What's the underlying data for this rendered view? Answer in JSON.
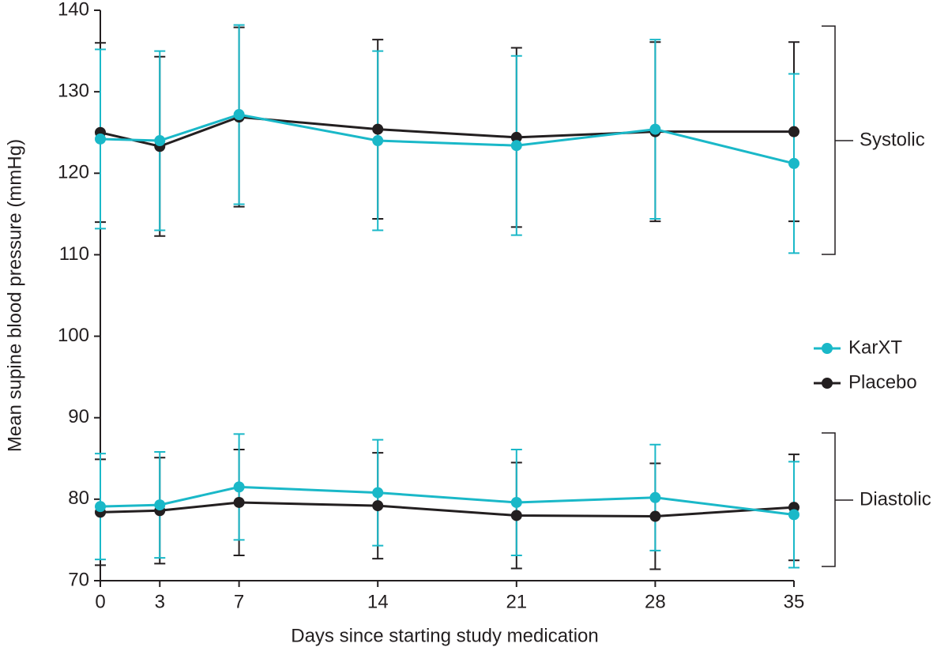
{
  "chart_data": {
    "type": "line",
    "x_label": "Days since starting study medication",
    "y_label": "Mean supine blood pressure (mmHg)",
    "x": [
      0,
      3,
      7,
      14,
      21,
      28,
      35
    ],
    "xlim": [
      0,
      35
    ],
    "xticks": [
      0,
      3,
      7,
      14,
      21,
      28,
      35
    ],
    "ylim": [
      70,
      140
    ],
    "yticks": [
      70,
      80,
      90,
      100,
      110,
      120,
      130,
      140
    ],
    "groups": [
      "Systolic",
      "Diastolic"
    ],
    "series": [
      {
        "name": "Placebo",
        "color": "#231f20",
        "groups": [
          {
            "values": [
              125.0,
              123.3,
              126.9,
              125.4,
              124.4,
              125.1,
              125.1
            ],
            "errors": [
              11,
              11,
              11,
              11,
              11,
              11,
              11
            ]
          },
          {
            "values": [
              78.4,
              78.6,
              79.6,
              79.2,
              78.0,
              77.9,
              79.0
            ],
            "errors": [
              6.5,
              6.5,
              6.5,
              6.5,
              6.5,
              6.5,
              6.5
            ]
          }
        ]
      },
      {
        "name": "KarXT",
        "color": "#1ab8c8",
        "groups": [
          {
            "values": [
              124.2,
              124.0,
              127.2,
              124.0,
              123.4,
              125.4,
              121.2
            ],
            "errors": [
              11,
              11,
              11,
              11,
              11,
              11,
              11
            ]
          },
          {
            "values": [
              79.1,
              79.3,
              81.5,
              80.8,
              79.6,
              80.2,
              78.1
            ],
            "errors": [
              6.5,
              6.5,
              6.5,
              6.5,
              6.5,
              6.5,
              6.5
            ]
          }
        ]
      }
    ]
  }
}
